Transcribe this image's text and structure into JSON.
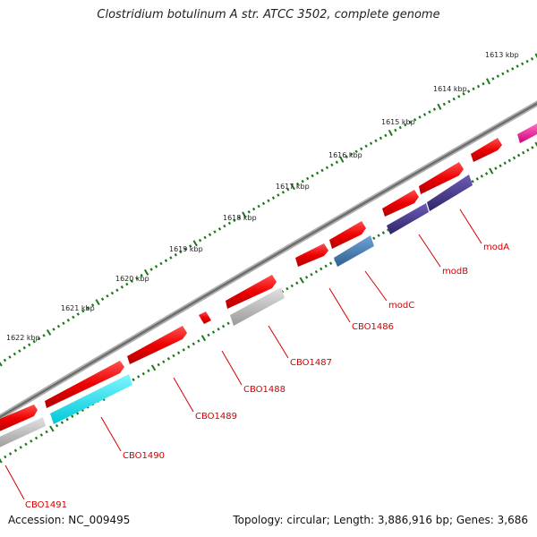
{
  "title": "Clostridium botulinum A str. ATCC 3502, complete genome",
  "footer": {
    "accession": "Accession: NC_009495",
    "summary": "Topology: circular; Length: 3,886,916 bp; Genes: 3,686"
  },
  "ruler_ticks": [
    "1613 kbp",
    "1614 kbp",
    "1615 kbp",
    "1616 kbp",
    "1617 kbp",
    "1618 kbp",
    "1619 kbp",
    "1620 kbp",
    "1621 kbp",
    "1622 kbp"
  ],
  "gene_labels": [
    "modA",
    "modB",
    "modC",
    "CBO1486",
    "CBO1487",
    "CBO1488",
    "CBO1489",
    "CBO1490",
    "CBO1491"
  ],
  "colors": {
    "forward_cds": "#ee1111",
    "reverse_cds": "#ff0000",
    "cyan_cds": "#00e5ee",
    "gray_cds": "#b8b8b8",
    "purple_cds": "#4b3d8f",
    "steel_cds": "#4a7fb5",
    "magenta_cds": "#ff2aa0",
    "backbone": "#7a7a7a",
    "tick_green": "#1a7a1a",
    "label_red": "#d40000"
  }
}
